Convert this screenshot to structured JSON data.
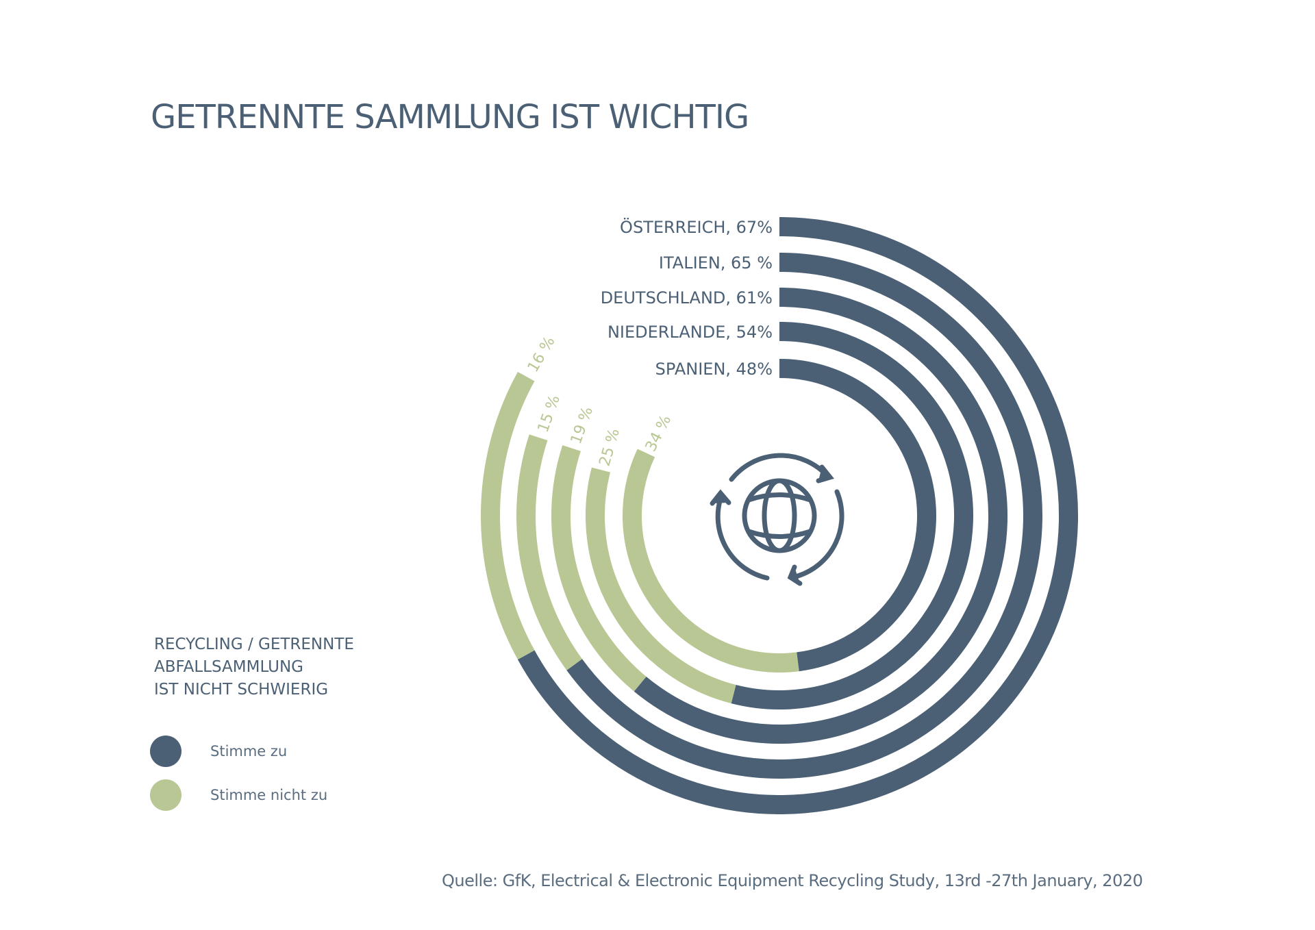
{
  "title": "GETRENNTE SAMMLUNG IST WICHTIG",
  "colors": {
    "agree": "#4b6075",
    "disagree": "#b8c793",
    "text": "#4b6075"
  },
  "center_icon": "globe-recycle-icon",
  "legend": {
    "heading": [
      "RECYCLING / GETRENNTE",
      "ABFALLSAMMLUNG",
      "IST NICHT SCHWIERIG"
    ],
    "items": [
      {
        "label": "Stimme zu",
        "color": "#4b6075"
      },
      {
        "label": "Stimme nicht zu",
        "color": "#b8c793"
      }
    ],
    "placement": "bottom-left"
  },
  "source": "Quelle: GfK, Electrical & Electronic Equipment Recycling Study, 13rd -27th January, 2020",
  "chart_data": {
    "type": "radial-bar",
    "title": "GETRENNTE SAMMLUNG IST WICHTIG",
    "categories": [
      "ÖSTERREICH",
      "ITALIEN",
      "DEUTSCHLAND",
      "NIEDERLANDE",
      "SPANIEN"
    ],
    "series": [
      {
        "name": "Stimme zu",
        "values": [
          67,
          65,
          61,
          54,
          48
        ],
        "labels": [
          "ÖSTERREICH, 67%",
          "ITALIEN, 65 %",
          "DEUTSCHLAND, 61%",
          "NIEDERLANDE, 54%",
          "SPANIEN, 48%"
        ]
      },
      {
        "name": "Stimme nicht zu",
        "values": [
          16,
          15,
          19,
          25,
          34
        ],
        "labels": [
          "16 %",
          "15 %",
          "19 %",
          "25 %",
          "34 %"
        ]
      }
    ],
    "scale_max": 100
  }
}
